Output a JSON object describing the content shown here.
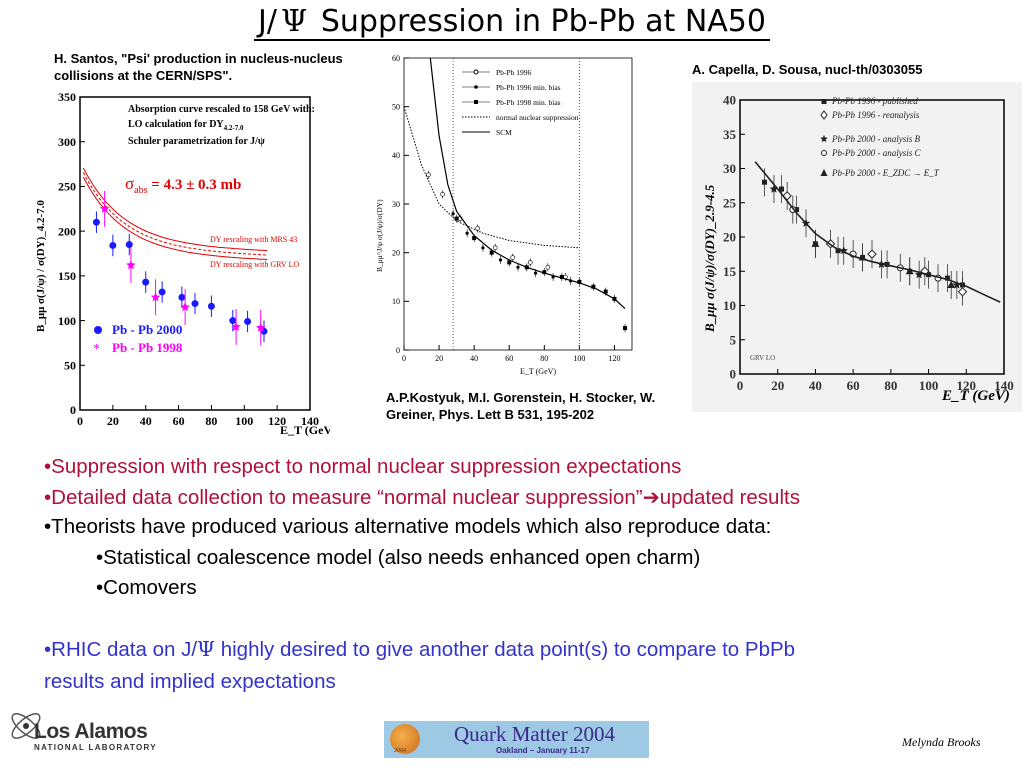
{
  "slide": {
    "title_prefix": "J/",
    "title_psi": "Ψ",
    "title_suffix": " Suppression in Pb-Pb at NA50",
    "ref_left": "H. Santos, \"Psi' production in nucleus-nucleus collisions at the CERN/SPS\".",
    "ref_middle": "A.P.Kostyuk, M.I. Gorenstein, H. Stocker, W. Greiner, Phys. Lett B 531, 195-202",
    "ref_right": "A. Capella, D. Sousa, nucl-th/0303055",
    "bullets": [
      {
        "text": "•Suppression with respect to normal nuclear suppression expectations"
      },
      {
        "text_a": "•Detailed data collection to measure “normal nuclear suppression”",
        "arrow": "➔",
        "text_b": "updated results"
      },
      {
        "text": "•Theorists have produced various alternative models which also reproduce data:"
      },
      {
        "text": "•Statistical coalescence model (also needs enhanced open charm)"
      },
      {
        "text": "•Comovers"
      },
      {
        "text_a": "•RHIC data on J/",
        "psi": "Ψ",
        "text_b": " highly desired to give another data point(s) to compare to PbPb",
        "text_c": "results and implied expectations"
      }
    ],
    "logo_left": {
      "main": "Los Alamos",
      "sub": "NATIONAL LABORATORY"
    },
    "logo_center": {
      "main": "Quark Matter 2004",
      "sub": "Oakland – January 11-17",
      "year": "2004"
    },
    "signature": "Melynda Brooks",
    "colors": {
      "bullet_red": "#b0103a",
      "bullet_blue": "#3333cc",
      "qm_bg": "#9ec9e4",
      "qm_text": "#3a2a8a"
    }
  },
  "chart_data": [
    {
      "type": "scatter",
      "xlabel": "E_T (GeV)",
      "ylabel": "B_μμ σ(J/ψ) / σ(DY)_4.2-7.0",
      "xlim": [
        0,
        140
      ],
      "ylim": [
        0,
        350
      ],
      "xticks": [
        "0",
        "20",
        "40",
        "60",
        "80",
        "100",
        "120",
        "140"
      ],
      "yticks": [
        "0",
        "50",
        "100",
        "150",
        "200",
        "250",
        "300",
        "350"
      ],
      "annotation_lines": [
        "Absorption curve rescaled to 158 GeV with:",
        "LO calculation for DY",
        "Schuler parametrization for J/ψ"
      ],
      "annotation_sub": "4.2-7.0",
      "sigma_label": "σ",
      "sigma_sub": "abs",
      "sigma_value": " = 4.3 ± 0.3 mb",
      "curve_labels": [
        "DY rescaling with MRS 43",
        "DY rescaling with GRV LO"
      ],
      "series": [
        {
          "name": "Pb - Pb  2000",
          "color": "#1a1aff",
          "marker": "circle",
          "x": [
            10,
            20,
            30,
            40,
            50,
            62,
            70,
            80,
            93,
            102,
            112
          ],
          "y": [
            210,
            184,
            185,
            143,
            132,
            126,
            119,
            116,
            100,
            99,
            88
          ]
        },
        {
          "name": "Pb - Pb  1998",
          "color": "#ff00ff",
          "marker": "star",
          "x": [
            15,
            31,
            46,
            64,
            95,
            110
          ],
          "y": [
            225,
            162,
            126,
            115,
            93,
            92
          ]
        }
      ]
    },
    {
      "type": "line",
      "xlabel": "E_T (GeV)",
      "ylabel": "B_μμ^J/ψ σ(J/ψ)/σ(DY)",
      "xlim": [
        0,
        130
      ],
      "ylim": [
        0,
        60
      ],
      "xticks": [
        "0",
        "20",
        "40",
        "60",
        "80",
        "100",
        "120"
      ],
      "yticks": [
        "0",
        "10",
        "20",
        "30",
        "40",
        "50",
        "60"
      ],
      "vlines": [
        28,
        100
      ],
      "series": [
        {
          "name": "Pb-Pb 1996",
          "marker": "open-circle",
          "x": [
            14,
            22,
            32,
            42,
            52,
            62,
            72,
            82,
            92
          ],
          "y": [
            36,
            32,
            27,
            25,
            21,
            19,
            18,
            17,
            15
          ]
        },
        {
          "name": "Pb-Pb 1996 min. bias",
          "marker": "dot",
          "x": [
            28,
            36,
            45,
            55,
            65,
            75,
            85,
            95
          ],
          "y": [
            28,
            24,
            21,
            18.5,
            17,
            15.8,
            15,
            14.2
          ]
        },
        {
          "name": "Pb-Pb 1998 min. bias",
          "marker": "square",
          "x": [
            30,
            40,
            50,
            60,
            70,
            80,
            90,
            100,
            108,
            115,
            120,
            126
          ],
          "y": [
            27,
            23,
            20,
            18,
            17,
            16,
            15,
            14,
            13,
            12,
            10.5,
            4.5
          ]
        },
        {
          "name": "normal nuclear suppression",
          "style": "dotted",
          "x": [
            0,
            10,
            20,
            30,
            45,
            60,
            80,
            100
          ],
          "y": [
            50,
            38,
            30,
            26.5,
            24,
            22.5,
            21.5,
            21
          ]
        },
        {
          "name": "SCM",
          "style": "solid",
          "x": [
            15,
            20,
            25,
            30,
            40,
            50,
            60,
            70,
            80,
            90,
            100,
            110,
            120,
            126
          ],
          "y": [
            60,
            44,
            34,
            28.5,
            23.5,
            20.5,
            18.5,
            17,
            15.8,
            14.8,
            13.8,
            12.5,
            10.5,
            8.5
          ]
        }
      ]
    },
    {
      "type": "scatter",
      "xlabel": "E_T (GeV)",
      "ylabel": "B_μμ σ(J/ψ)/σ(DY)_2.9-4.5",
      "xlim": [
        0,
        140
      ],
      "ylim": [
        0,
        40
      ],
      "xticks": [
        "0",
        "20",
        "40",
        "60",
        "80",
        "100",
        "120",
        "140"
      ],
      "yticks": [
        "0",
        "5",
        "10",
        "15",
        "20",
        "25",
        "30",
        "35",
        "40"
      ],
      "corner_label": "GRV LO",
      "series": [
        {
          "name": "Pb-Pb 1996 - published",
          "marker": "filled-square",
          "x": [
            13,
            22,
            30,
            40,
            52,
            65,
            78,
            90,
            100,
            110,
            118
          ],
          "y": [
            28,
            27,
            24,
            19,
            18,
            17,
            16,
            15,
            14.5,
            14,
            13
          ]
        },
        {
          "name": "Pb-Pb 1996 - reanalysis",
          "marker": "open-diamond",
          "x": [
            25,
            48,
            70,
            98,
            118
          ],
          "y": [
            26,
            19,
            17.5,
            15,
            12
          ]
        },
        {
          "name": "Pb-Pb 2000 - analysis B",
          "marker": "star",
          "x": [
            18,
            35,
            55,
            75,
            95,
            115
          ],
          "y": [
            27,
            22,
            18,
            16,
            14.5,
            13
          ]
        },
        {
          "name": "Pb-Pb 2000 - analysis C",
          "marker": "open-circle",
          "x": [
            28,
            60,
            85,
            105
          ],
          "y": [
            24,
            17.5,
            15.5,
            14
          ]
        },
        {
          "name": "Pb-Pb 2000 - E_ZDC → E_T",
          "marker": "filled-triangle",
          "x": [
            40,
            65,
            90,
            112
          ],
          "y": [
            19,
            17,
            15,
            13
          ]
        },
        {
          "name": "model",
          "style": "solid",
          "x": [
            8,
            20,
            30,
            40,
            50,
            60,
            70,
            80,
            90,
            100,
            110,
            120,
            130,
            138
          ],
          "y": [
            31,
            27,
            23.5,
            20.5,
            18.5,
            17.2,
            16.4,
            15.8,
            15.2,
            14.5,
            13.8,
            12.8,
            11.5,
            10.5
          ]
        }
      ]
    }
  ]
}
